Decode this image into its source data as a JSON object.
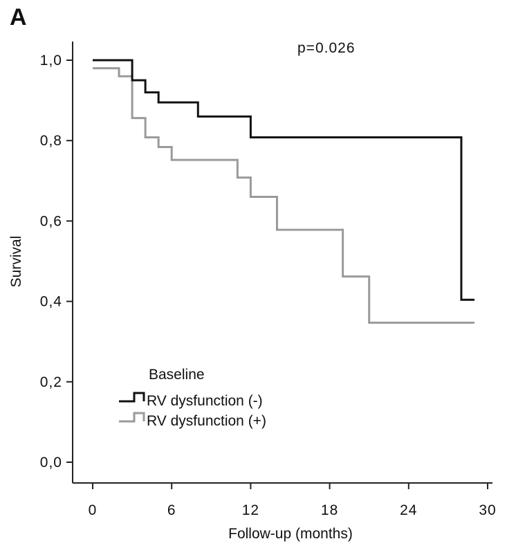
{
  "panel_label": "A",
  "chart_data": {
    "type": "line",
    "subtype": "kaplan-meier-step",
    "annotation": "p=0.026",
    "xlabel": "Follow-up (months)",
    "ylabel": "Survival",
    "xlim": [
      0,
      30
    ],
    "ylim": [
      0,
      1.0
    ],
    "xticks": [
      0,
      6,
      12,
      18,
      24,
      30
    ],
    "xtick_labels": [
      "0",
      "6",
      "12",
      "18",
      "24",
      "30"
    ],
    "yticks": [
      0,
      0.2,
      0.4,
      0.6,
      0.8,
      1.0
    ],
    "ytick_labels": [
      "0,0",
      "0,2",
      "0,4",
      "0,6",
      "0,8",
      "1,0"
    ],
    "grid": false,
    "legend": {
      "title": "Baseline",
      "position": "bottom-left"
    },
    "series": [
      {
        "name": "RV dysfunction (-)",
        "color": "#111111",
        "points": [
          [
            0,
            1.0
          ],
          [
            3,
            0.95
          ],
          [
            4,
            0.92
          ],
          [
            5,
            0.895
          ],
          [
            8,
            0.86
          ],
          [
            12,
            0.808
          ],
          [
            28,
            0.404
          ],
          [
            29,
            0.404
          ]
        ]
      },
      {
        "name": "RV dysfunction (+)",
        "color": "#9a9a9a",
        "points": [
          [
            0,
            0.98
          ],
          [
            2,
            0.96
          ],
          [
            3,
            0.856
          ],
          [
            4,
            0.808
          ],
          [
            5,
            0.784
          ],
          [
            6,
            0.752
          ],
          [
            11,
            0.708
          ],
          [
            12,
            0.66
          ],
          [
            14,
            0.578
          ],
          [
            19,
            0.462
          ],
          [
            21,
            0.347
          ],
          [
            29,
            0.347
          ]
        ]
      }
    ]
  }
}
